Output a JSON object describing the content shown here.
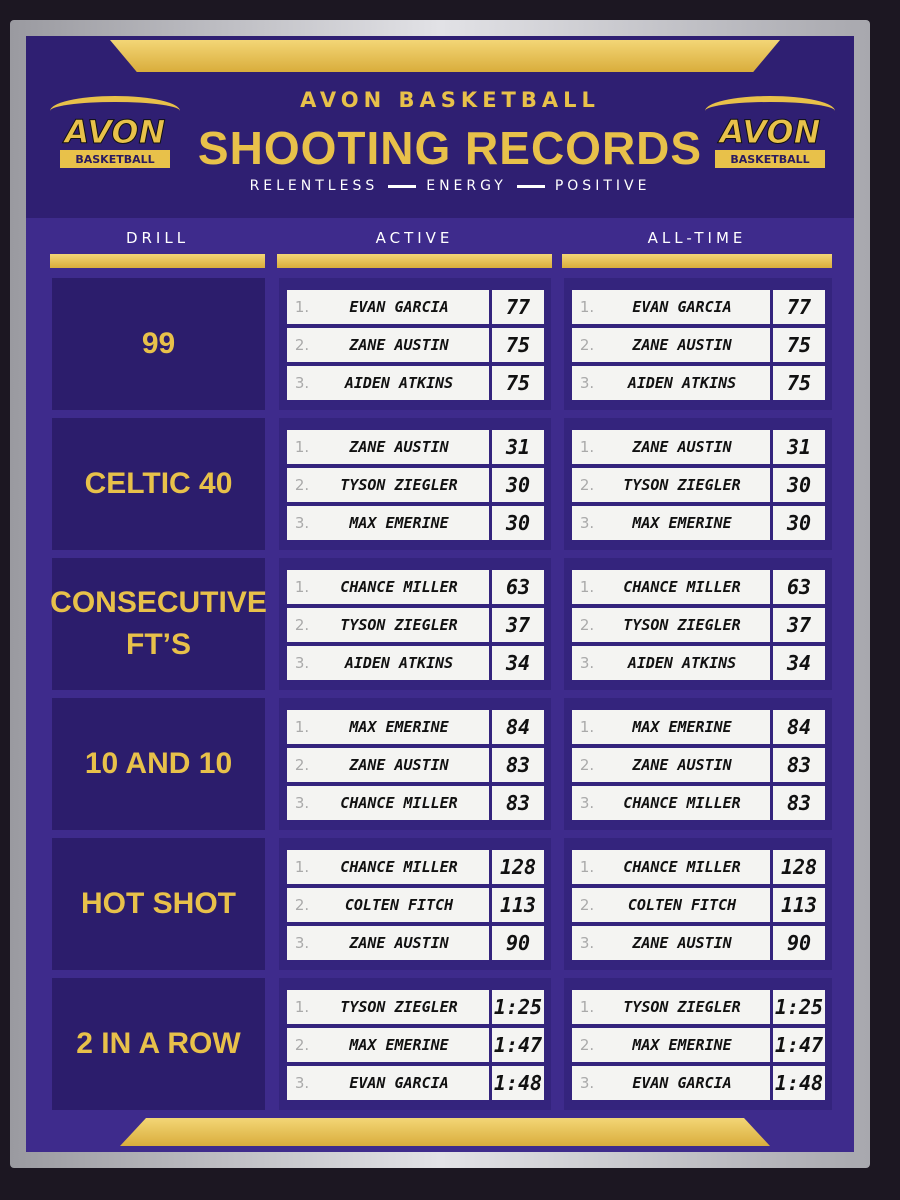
{
  "header": {
    "school": "AVON BASKETBALL",
    "title": "SHOOTING RECORDS",
    "motto": [
      "RELENTLESS",
      "ENERGY",
      "POSITIVE"
    ]
  },
  "logos": [
    {
      "name": "AVON",
      "subtitle": "BASKETBALL"
    },
    {
      "name": "AVON",
      "subtitle": "BASKETBALL"
    }
  ],
  "table": {
    "columns": [
      "DRILL",
      "ACTIVE",
      "ALL-TIME"
    ],
    "rows": [
      {
        "drill": "99",
        "active": [
          {
            "rank": "1.",
            "name": "EVAN GARCIA",
            "score": 77
          },
          {
            "rank": "2.",
            "name": "ZANE AUSTIN",
            "score": 75
          },
          {
            "rank": "3.",
            "name": "AIDEN ATKINS",
            "score": 75
          }
        ],
        "all_time": [
          {
            "rank": "1.",
            "name": "EVAN GARCIA",
            "score": 77
          },
          {
            "rank": "2.",
            "name": "ZANE AUSTIN",
            "score": 75
          },
          {
            "rank": "3.",
            "name": "AIDEN ATKINS",
            "score": 75
          }
        ]
      },
      {
        "drill": "CELTIC 40",
        "active": [
          {
            "rank": "1.",
            "name": "ZANE AUSTIN",
            "score": 31
          },
          {
            "rank": "2.",
            "name": "TYSON ZIEGLER",
            "score": 30
          },
          {
            "rank": "3.",
            "name": "MAX EMERINE",
            "score": 30
          }
        ],
        "all_time": [
          {
            "rank": "1.",
            "name": "ZANE AUSTIN",
            "score": 31
          },
          {
            "rank": "2.",
            "name": "TYSON ZIEGLER",
            "score": 30
          },
          {
            "rank": "3.",
            "name": "MAX EMERINE",
            "score": 30
          }
        ]
      },
      {
        "drill": "CONSECUTIVE FT’S",
        "active": [
          {
            "rank": "1.",
            "name": "CHANCE MILLER",
            "score": 63
          },
          {
            "rank": "2.",
            "name": "TYSON ZIEGLER",
            "score": 37
          },
          {
            "rank": "3.",
            "name": "AIDEN ATKINS",
            "score": 34
          }
        ],
        "all_time": [
          {
            "rank": "1.",
            "name": "CHANCE MILLER",
            "score": 63
          },
          {
            "rank": "2.",
            "name": "TYSON ZIEGLER",
            "score": 37
          },
          {
            "rank": "3.",
            "name": "AIDEN ATKINS",
            "score": 34
          }
        ]
      },
      {
        "drill": "10 AND 10",
        "active": [
          {
            "rank": "1.",
            "name": "MAX EMERINE",
            "score": 84
          },
          {
            "rank": "2.",
            "name": "ZANE AUSTIN",
            "score": 83
          },
          {
            "rank": "3.",
            "name": "CHANCE MILLER",
            "score": 83
          }
        ],
        "all_time": [
          {
            "rank": "1.",
            "name": "MAX EMERINE",
            "score": 84
          },
          {
            "rank": "2.",
            "name": "ZANE AUSTIN",
            "score": 83
          },
          {
            "rank": "3.",
            "name": "CHANCE MILLER",
            "score": 83
          }
        ]
      },
      {
        "drill": "HOT SHOT",
        "active": [
          {
            "rank": "1.",
            "name": "CHANCE MILLER",
            "score": 128
          },
          {
            "rank": "2.",
            "name": "COLTEN FITCH",
            "score": 113
          },
          {
            "rank": "3.",
            "name": "ZANE AUSTIN",
            "score": 90
          }
        ],
        "all_time": [
          {
            "rank": "1.",
            "name": "CHANCE MILLER",
            "score": 128
          },
          {
            "rank": "2.",
            "name": "COLTEN FITCH",
            "score": 113
          },
          {
            "rank": "3.",
            "name": "ZANE AUSTIN",
            "score": 90
          }
        ]
      },
      {
        "drill": "2 IN A ROW",
        "active": [
          {
            "rank": "1.",
            "name": "TYSON ZIEGLER",
            "score": "1:25"
          },
          {
            "rank": "2.",
            "name": "MAX EMERINE",
            "score": "1:47"
          },
          {
            "rank": "3.",
            "name": "EVAN GARCIA",
            "score": "1:48"
          }
        ],
        "all_time": [
          {
            "rank": "1.",
            "name": "TYSON ZIEGLER",
            "score": "1:25"
          },
          {
            "rank": "2.",
            "name": "MAX EMERINE",
            "score": "1:47"
          },
          {
            "rank": "3.",
            "name": "EVAN GARCIA",
            "score": "1:48"
          }
        ]
      }
    ]
  }
}
